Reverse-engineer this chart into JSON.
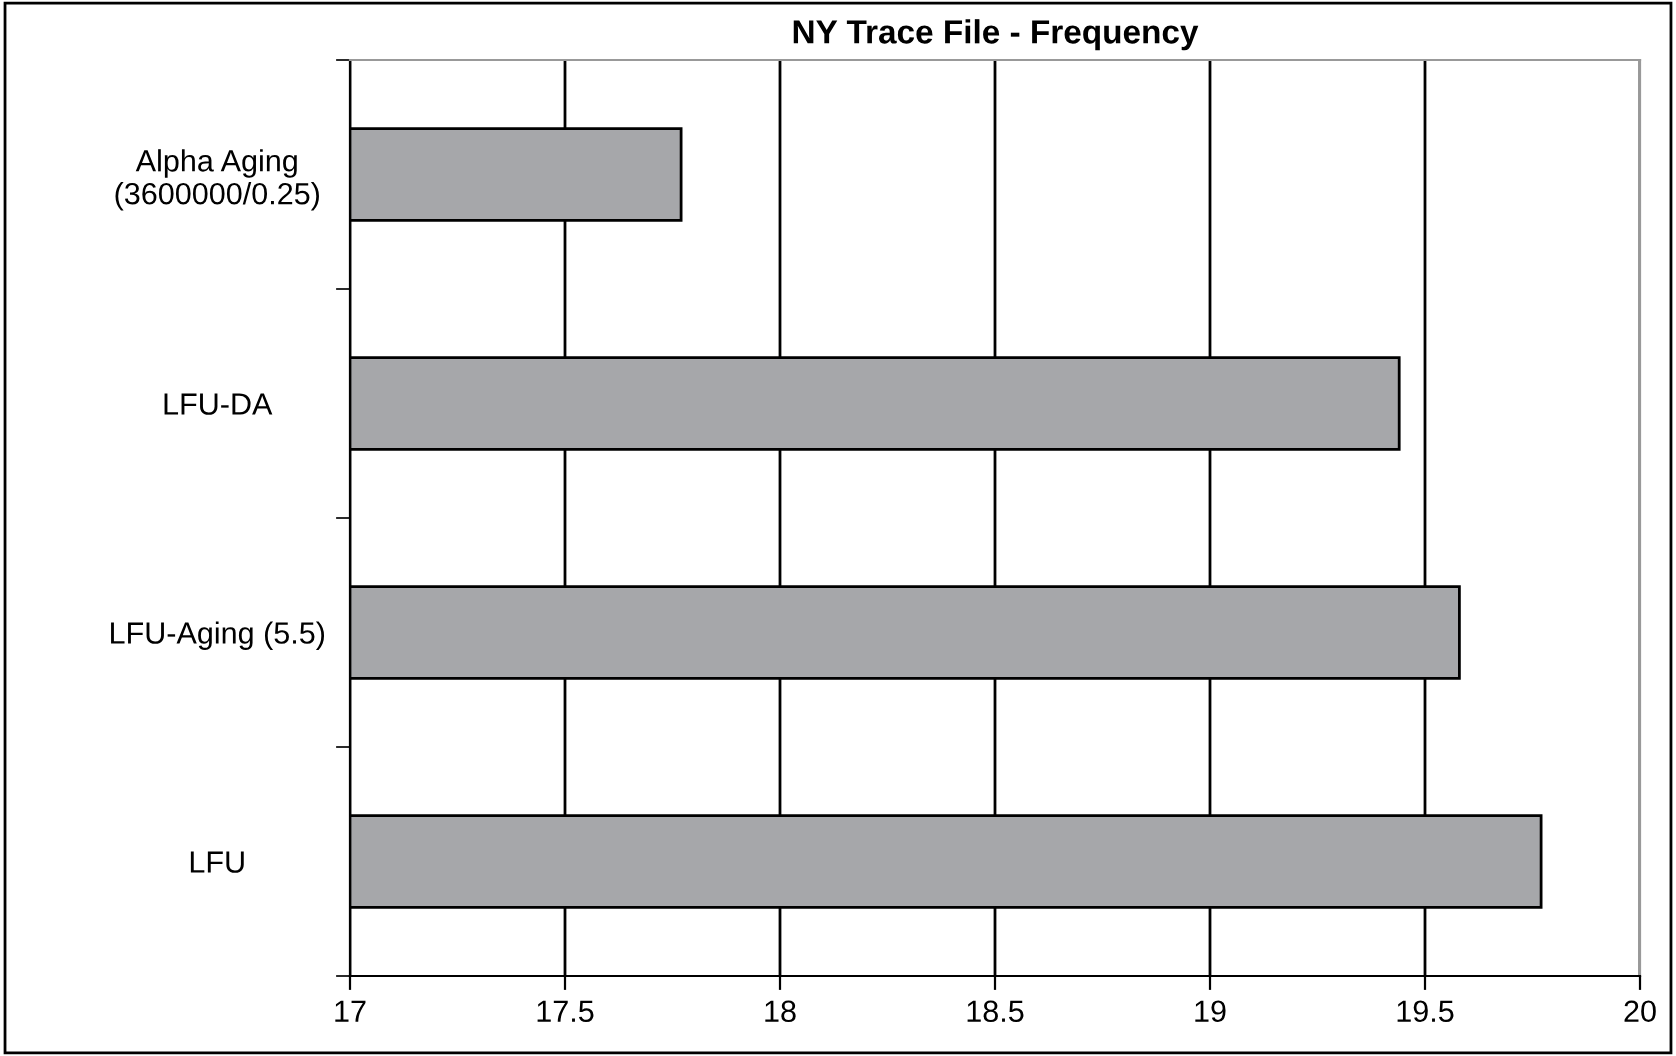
{
  "chart_data": {
    "type": "bar",
    "orientation": "horizontal",
    "title": "NY Trace File - Frequency",
    "categories": [
      "Alpha Aging\n(3600000/0.25)",
      "LFU-DA",
      "LFU-Aging (5.5)",
      "LFU"
    ],
    "values": [
      17.77,
      19.44,
      19.58,
      19.77
    ],
    "color": "#a6a7aa",
    "xlim": [
      17,
      20
    ],
    "xticks": [
      17,
      17.5,
      18,
      18.5,
      19,
      19.5,
      20
    ],
    "grid": "x",
    "legend": false
  }
}
